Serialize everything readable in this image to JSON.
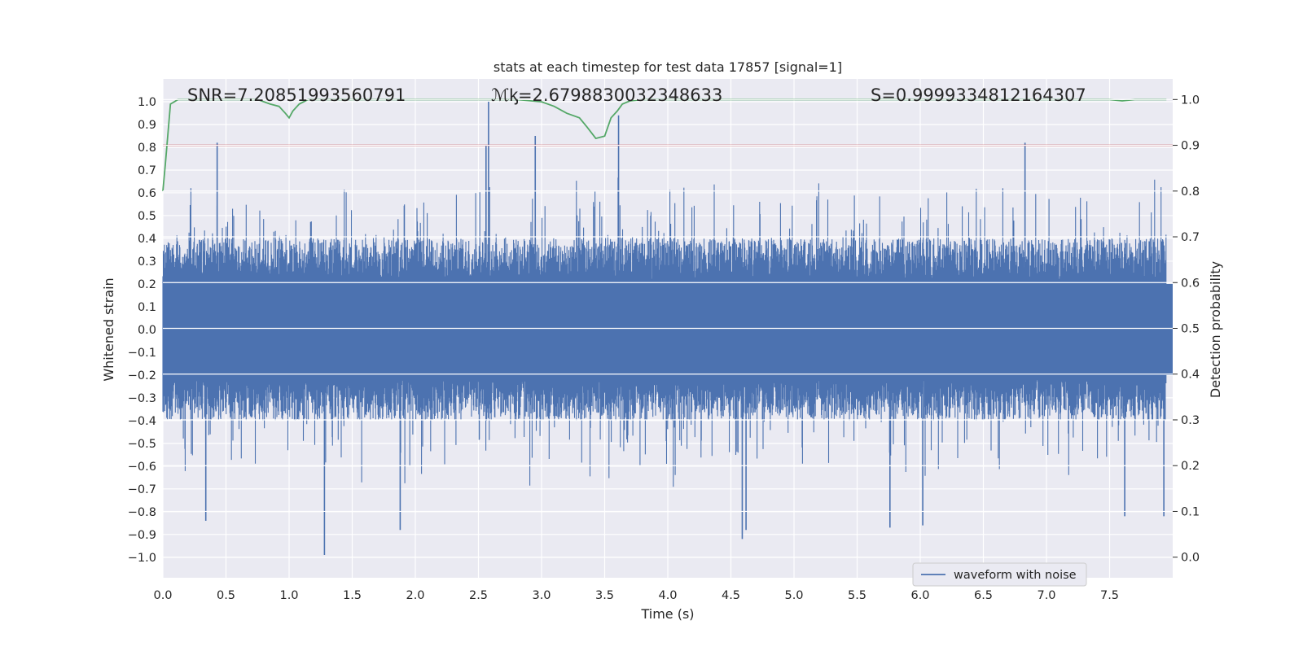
{
  "chart_data": {
    "type": "line",
    "title": "stats at each timestep for test data 17857 [signal=1]",
    "xlabel": "Time (s)",
    "ylabel": "Whitened strain",
    "y2label": "Detection probability",
    "xlim": [
      0.0,
      8.0
    ],
    "ylim": [
      -1.09,
      1.1
    ],
    "y2lim": [
      -0.045,
      1.045
    ],
    "x_ticks": [
      "0.0",
      "0.5",
      "1.0",
      "1.5",
      "2.0",
      "2.5",
      "3.0",
      "3.5",
      "4.0",
      "4.5",
      "5.0",
      "5.5",
      "6.0",
      "6.5",
      "7.0",
      "7.5"
    ],
    "y_ticks": [
      "1.0",
      "0.9",
      "0.8",
      "0.7",
      "0.6",
      "0.5",
      "0.4",
      "0.3",
      "0.2",
      "0.1",
      "0.0",
      "−0.1",
      "−0.2",
      "−0.3",
      "−0.4",
      "−0.5",
      "−0.6",
      "−0.7",
      "−0.8",
      "−0.9",
      "−1.0"
    ],
    "y2_ticks": [
      "1.0",
      "0.9",
      "0.8",
      "0.7",
      "0.6",
      "0.5",
      "0.4",
      "0.3",
      "0.2",
      "0.1",
      "0.0"
    ],
    "grid": true,
    "legend_position": "lower-right",
    "annotations": {
      "snr": "SNR=7.20851993560791",
      "mc": "ℳᶄ=2.6798830032348633",
      "s": "S=0.9999334812164307"
    },
    "series": [
      {
        "name": "waveform with noise",
        "axis": "left",
        "color": "#4c72b0",
        "style": "dense-noise",
        "envelope": {
          "upper": 0.4,
          "lower": -0.4
        },
        "peaks": [
          {
            "x": 0.43,
            "y": 0.82
          },
          {
            "x": 2.56,
            "y": 0.81
          },
          {
            "x": 2.58,
            "y": 1.0
          },
          {
            "x": 2.95,
            "y": 0.85
          },
          {
            "x": 3.61,
            "y": 0.94
          },
          {
            "x": 6.83,
            "y": 0.82
          },
          {
            "x": 1.28,
            "y": -0.99
          },
          {
            "x": 0.34,
            "y": -0.84
          },
          {
            "x": 4.59,
            "y": -0.92
          },
          {
            "x": 4.62,
            "y": -0.88
          },
          {
            "x": 1.88,
            "y": -0.88
          },
          {
            "x": 5.76,
            "y": -0.87
          },
          {
            "x": 6.02,
            "y": -0.86
          },
          {
            "x": 7.62,
            "y": -0.82
          },
          {
            "x": 7.93,
            "y": -0.82
          }
        ]
      },
      {
        "name": "",
        "axis": "right",
        "color": "#55a868",
        "x": [
          0.0,
          0.02,
          0.06,
          0.12,
          0.2,
          0.4,
          0.6,
          0.75,
          0.85,
          0.92,
          0.97,
          1.0,
          1.03,
          1.08,
          1.15,
          1.3,
          1.6,
          2.0,
          2.2,
          2.5,
          2.8,
          3.0,
          3.1,
          3.2,
          3.3,
          3.36,
          3.43,
          3.5,
          3.55,
          3.6,
          3.64,
          3.7,
          3.8,
          4.0,
          5.0,
          6.0,
          7.0,
          7.5,
          7.6,
          7.7,
          7.95
        ],
        "values": [
          0.8,
          0.86,
          0.99,
          1.0,
          1.0,
          1.0,
          1.0,
          1.0,
          0.99,
          0.985,
          0.97,
          0.96,
          0.975,
          0.99,
          1.0,
          1.0,
          1.0,
          1.0,
          1.0,
          1.0,
          1.0,
          0.995,
          0.985,
          0.97,
          0.96,
          0.94,
          0.915,
          0.92,
          0.96,
          0.975,
          0.99,
          0.997,
          1.0,
          1.0,
          1.0,
          1.0,
          1.0,
          1.0,
          0.997,
          1.0,
          1.0
        ]
      },
      {
        "name": "",
        "axis": "right",
        "color": "#c44e52",
        "style": "threshold",
        "value": 0.9
      }
    ],
    "colors": {
      "plot_bg": "#eaeaf2",
      "grid": "#ffffff",
      "text": "#262626"
    }
  }
}
